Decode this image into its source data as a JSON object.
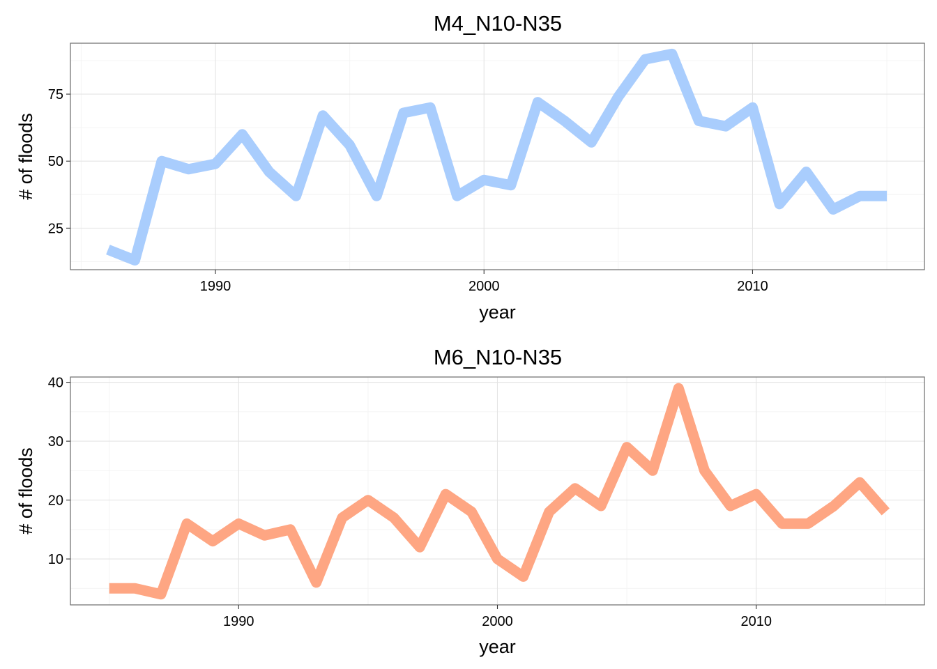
{
  "chart_data": [
    {
      "type": "line",
      "title": "M4_N10-N35",
      "xlabel": "year",
      "ylabel": "# of floods",
      "xlim": [
        1984.6,
        2016.4
      ],
      "ylim": [
        9.5,
        94
      ],
      "xticks": [
        1990,
        2000,
        2010
      ],
      "yticks": [
        25,
        50,
        75
      ],
      "grid": true,
      "line_color": "#a9cdfd",
      "series": [
        {
          "x": [
            1986,
            1987,
            1988,
            1989,
            1990,
            1991,
            1992,
            1993,
            1994,
            1995,
            1996,
            1997,
            1998,
            1999,
            2000,
            2001,
            2002,
            2003,
            2004,
            2005,
            2006,
            2007,
            2008,
            2009,
            2010,
            2011,
            2012,
            2013,
            2014,
            2015
          ],
          "values": [
            17,
            13,
            50,
            47,
            49,
            60,
            46,
            37,
            67,
            56,
            37,
            68,
            70,
            37,
            43,
            41,
            72,
            65,
            57,
            74,
            88,
            90,
            65,
            63,
            70,
            34,
            46,
            32,
            37,
            37
          ]
        }
      ]
    },
    {
      "type": "line",
      "title": "M6_N10-N35",
      "xlabel": "year",
      "ylabel": "# of floods",
      "xlim": [
        1983.5,
        2016.5
      ],
      "ylim": [
        2.2,
        40.9
      ],
      "xticks": [
        1990,
        2000,
        2010
      ],
      "yticks": [
        10,
        20,
        30,
        40
      ],
      "grid": true,
      "line_color": "#fea683",
      "series": [
        {
          "x": [
            1985,
            1986,
            1987,
            1988,
            1989,
            1990,
            1991,
            1992,
            1993,
            1994,
            1995,
            1996,
            1997,
            1998,
            1999,
            2000,
            2001,
            2002,
            2003,
            2004,
            2005,
            2006,
            2007,
            2008,
            2009,
            2010,
            2011,
            2012,
            2013,
            2014,
            2015
          ],
          "values": [
            5,
            5,
            4,
            16,
            13,
            16,
            14,
            15,
            6,
            17,
            20,
            17,
            12,
            21,
            18,
            10,
            7,
            18,
            22,
            19,
            29,
            25,
            39,
            25,
            19,
            21,
            16,
            16,
            19,
            23,
            18
          ]
        }
      ]
    }
  ]
}
